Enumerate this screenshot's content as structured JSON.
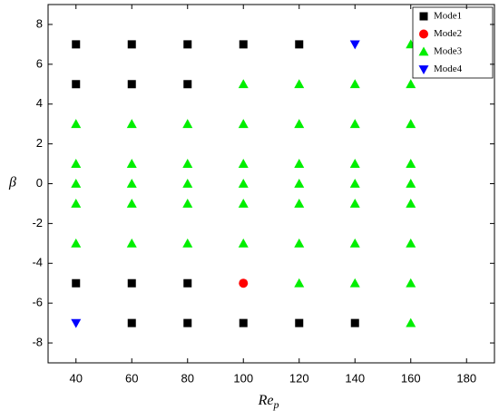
{
  "chart_data": {
    "type": "scatter",
    "xlabel": "Re",
    "xlabel_sub": "p",
    "ylabel": "β",
    "xlim": [
      30,
      190
    ],
    "xticks": [
      40,
      60,
      80,
      100,
      120,
      140,
      160,
      180
    ],
    "ylim": [
      -9,
      9
    ],
    "yticks": [
      -8,
      -6,
      -4,
      -2,
      0,
      2,
      4,
      6,
      8
    ],
    "legend": "upper right",
    "series": [
      {
        "name": "Mode1",
        "color": "#000000",
        "marker": "square",
        "x": [
          40,
          60,
          80,
          100,
          120,
          40,
          60,
          80,
          40,
          60,
          80,
          60,
          80,
          100,
          120,
          140
        ],
        "values": [
          7,
          7,
          7,
          7,
          7,
          5,
          5,
          5,
          -5,
          -5,
          -5,
          -7,
          -7,
          -7,
          -7,
          -7
        ]
      },
      {
        "name": "Mode2",
        "color": "#ff0000",
        "marker": "circle",
        "x": [
          100
        ],
        "values": [
          -5
        ]
      },
      {
        "name": "Mode3",
        "color": "#00ee00",
        "marker": "triangle-up",
        "x": [
          160,
          100,
          120,
          140,
          160,
          40,
          60,
          80,
          100,
          120,
          140,
          160,
          40,
          60,
          80,
          100,
          120,
          140,
          160,
          40,
          60,
          80,
          100,
          120,
          140,
          160,
          40,
          60,
          80,
          100,
          120,
          140,
          160,
          40,
          60,
          80,
          100,
          120,
          140,
          160,
          120,
          140,
          160,
          160
        ],
        "values": [
          7,
          5,
          5,
          5,
          5,
          3,
          3,
          3,
          3,
          3,
          3,
          3,
          1,
          1,
          1,
          1,
          1,
          1,
          1,
          0,
          0,
          0,
          0,
          0,
          0,
          0,
          -1,
          -1,
          -1,
          -1,
          -1,
          -1,
          -1,
          -3,
          -3,
          -3,
          -3,
          -3,
          -3,
          -3,
          -5,
          -5,
          -5,
          -7
        ]
      },
      {
        "name": "Mode4",
        "color": "#0000ff",
        "marker": "triangle-down",
        "x": [
          140,
          40
        ],
        "values": [
          7,
          -7
        ]
      }
    ]
  }
}
